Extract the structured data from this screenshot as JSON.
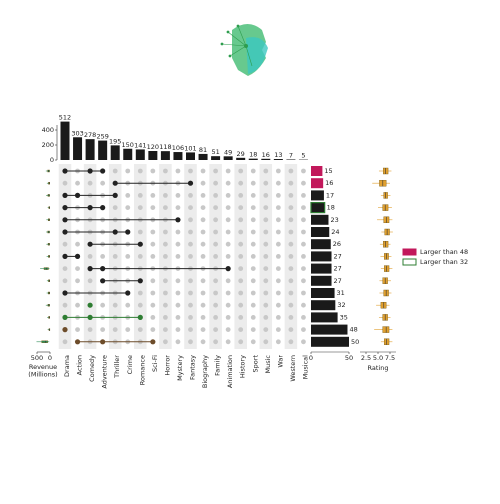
{
  "chart_data": {
    "type": "upset",
    "sets": {
      "names": [
        "Drama",
        "Action",
        "Comedy",
        "Adventure",
        "Thriller",
        "Crime",
        "Romance",
        "Sci-Fi",
        "Horror",
        "Mystery",
        "Fantasy",
        "Biography",
        "Family",
        "Animation",
        "History",
        "Sport",
        "Music",
        "War",
        "Western",
        "Musical"
      ],
      "sizes": [
        512,
        303,
        278,
        259,
        195,
        150,
        141,
        120,
        118,
        106,
        101,
        81,
        51,
        49,
        29,
        18,
        16,
        13,
        7,
        5
      ],
      "ylim": [
        0,
        600
      ],
      "yticks": [
        0,
        200,
        400
      ],
      "color": "#1a1a1a"
    },
    "rows": [
      {
        "sets": [
          0,
          2,
          3
        ],
        "size": 15,
        "bar_color": "#c2185b",
        "dot_color": "#222",
        "revenue": [
          5,
          20,
          45,
          90,
          160
        ],
        "rating": [
          5.2,
          6.1,
          6.6,
          7.1,
          7.8
        ]
      },
      {
        "sets": [
          4,
          10
        ],
        "size": 16,
        "bar_color": "#c2185b",
        "dot_color": "#222",
        "revenue": [
          2,
          10,
          30,
          60,
          120
        ],
        "rating": [
          3.8,
          5.3,
          6.0,
          6.7,
          7.5
        ]
      },
      {
        "sets": [
          0,
          1,
          4
        ],
        "size": 17,
        "bar_color": "#1a1a1a",
        "dot_color": "#222",
        "revenue": [
          3,
          15,
          40,
          80,
          150
        ],
        "rating": [
          5.6,
          6.2,
          6.6,
          7.0,
          7.6
        ]
      },
      {
        "sets": [
          0,
          2,
          3
        ],
        "size": 18,
        "bar_color": "#1a1a1a",
        "bar_outline": "#2e7d32",
        "dot_color": "#222",
        "revenue": [
          2,
          8,
          20,
          45,
          90
        ],
        "rating": [
          5.0,
          6.0,
          6.5,
          7.1,
          7.9
        ]
      },
      {
        "sets": [
          0,
          9
        ],
        "size": 23,
        "bar_color": "#1a1a1a",
        "dot_color": "#222",
        "revenue": [
          3,
          14,
          35,
          70,
          140
        ],
        "rating": [
          4.8,
          6.2,
          6.8,
          7.3,
          8.0
        ]
      },
      {
        "sets": [
          0,
          4,
          5
        ],
        "size": 24,
        "bar_color": "#1a1a1a",
        "dot_color": "#222",
        "revenue": [
          4,
          18,
          42,
          85,
          150
        ],
        "rating": [
          5.7,
          6.4,
          6.9,
          7.4,
          8.1
        ]
      },
      {
        "sets": [
          2,
          6
        ],
        "size": 26,
        "bar_color": "#1a1a1a",
        "dot_color": "#222",
        "revenue": [
          3,
          16,
          38,
          75,
          140
        ],
        "rating": [
          5.4,
          6.1,
          6.6,
          7.1,
          7.6
        ]
      },
      {
        "sets": [
          0,
          1
        ],
        "size": 27,
        "bar_color": "#1a1a1a",
        "dot_color": "#222",
        "revenue": [
          2,
          12,
          30,
          65,
          130
        ],
        "rating": [
          5.5,
          6.3,
          6.8,
          7.2,
          7.8
        ]
      },
      {
        "sets": [
          2,
          3,
          13
        ],
        "size": 27,
        "bar_color": "#1a1a1a",
        "dot_color": "#222",
        "revenue": [
          20,
          60,
          140,
          230,
          380
        ],
        "rating": [
          5.6,
          6.3,
          6.8,
          7.3,
          8.0
        ]
      },
      {
        "sets": [
          3,
          6
        ],
        "size": 27,
        "bar_color": "#1a1a1a",
        "dot_color": "#222",
        "revenue": [
          2,
          10,
          28,
          60,
          120
        ],
        "rating": [
          5.3,
          6.0,
          6.5,
          7.0,
          7.7
        ]
      },
      {
        "sets": [
          0,
          5
        ],
        "size": 31,
        "bar_color": "#1a1a1a",
        "dot_color": "#222",
        "revenue": [
          2,
          12,
          32,
          70,
          130
        ],
        "rating": [
          5.3,
          6.2,
          6.7,
          7.2,
          7.8
        ]
      },
      {
        "sets": [
          2
        ],
        "size": 32,
        "bar_color": "#1a1a1a",
        "dot_color": "#2e7d32",
        "revenue": [
          3,
          15,
          40,
          80,
          160
        ],
        "rating": [
          4.6,
          5.6,
          6.2,
          6.7,
          7.4
        ]
      },
      {
        "sets": [
          0,
          2,
          6
        ],
        "size": 35,
        "bar_color": "#1a1a1a",
        "dot_color": "#2e7d32",
        "revenue": [
          2,
          10,
          28,
          55,
          110
        ],
        "rating": [
          5.2,
          6.0,
          6.5,
          7.0,
          7.6
        ]
      },
      {
        "sets": [
          0
        ],
        "size": 48,
        "bar_color": "#1a1a1a",
        "dot_color": "#6d4c2a",
        "revenue": [
          1,
          5,
          15,
          40,
          90
        ],
        "rating": [
          4.2,
          6.0,
          6.7,
          7.3,
          8.0
        ]
      },
      {
        "sets": [
          1,
          3,
          7
        ],
        "size": 50,
        "bar_color": "#1a1a1a",
        "dot_color": "#6d4c2a",
        "revenue": [
          30,
          90,
          180,
          320,
          520
        ],
        "rating": [
          5.6,
          6.3,
          6.8,
          7.3,
          8.0
        ]
      }
    ],
    "size_xlim": [
      0,
      50
    ],
    "size_xticks": [
      0,
      50
    ],
    "revenue_label": [
      "Revenue",
      "(Millions)"
    ],
    "revenue_xlim": [
      500,
      0
    ],
    "revenue_xticks": [
      500,
      0
    ],
    "revenue_color": "#2e8b57",
    "rating_label": "Rating",
    "rating_xlim": [
      0,
      10
    ],
    "rating_xticks": [
      2.5,
      {
        "value": 5,
        "label": "5.0"
      },
      7.5
    ],
    "rating_color": "#e0a030",
    "legend": [
      {
        "label": "Larger than 48",
        "color": "#c2185b",
        "filled": true
      },
      {
        "label": "Larger than 32",
        "color": "#2e7d32",
        "filled": false
      }
    ]
  }
}
